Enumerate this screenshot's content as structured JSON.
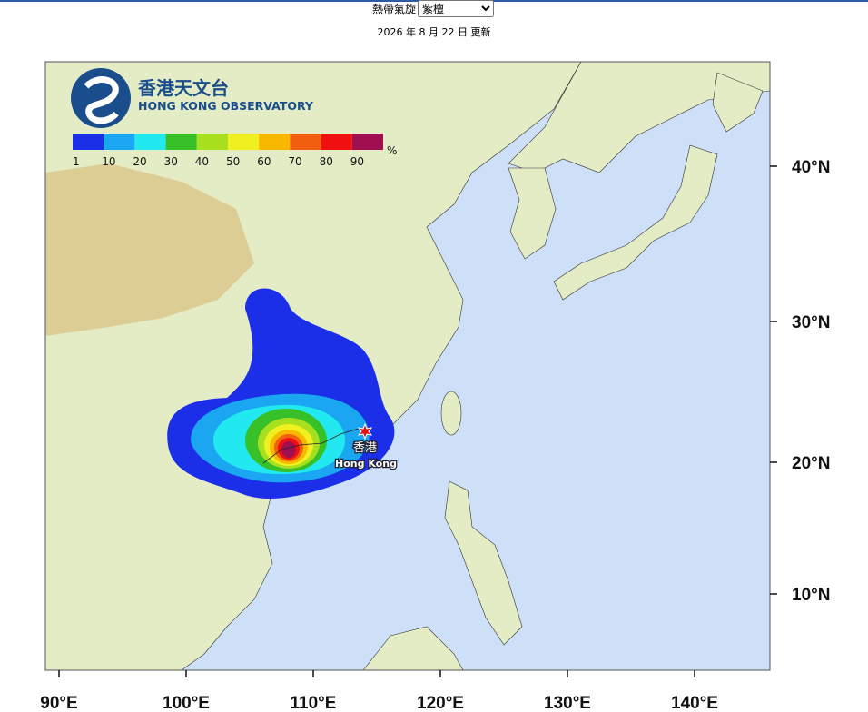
{
  "header": {
    "selector_label": "熱帶氣旋",
    "selected_option": "紫檀",
    "updated": "2026 年 8 月 22 日 更新"
  },
  "logo": {
    "name_zh": "香港天文台",
    "name_en": "HONG KONG OBSERVATORY"
  },
  "legend": {
    "unit": "%",
    "items": [
      {
        "label": "1",
        "color": "#1c2fe8"
      },
      {
        "label": "10",
        "color": "#1aa6f0"
      },
      {
        "label": "20",
        "color": "#22e8f0"
      },
      {
        "label": "30",
        "color": "#38c029"
      },
      {
        "label": "40",
        "color": "#a8e020"
      },
      {
        "label": "50",
        "color": "#f0f020"
      },
      {
        "label": "60",
        "color": "#f8b800"
      },
      {
        "label": "70",
        "color": "#f06010"
      },
      {
        "label": "80",
        "color": "#f01010"
      },
      {
        "label": "90",
        "color": "#a01050"
      }
    ]
  },
  "place": {
    "name_zh": "香港",
    "name_en": "Hong Kong"
  },
  "lat_labels": [
    "40°N",
    "30°N",
    "20°N",
    "10°N"
  ],
  "lon_labels": [
    "90°E",
    "100°E",
    "110°E",
    "120°E",
    "130°E",
    "140°E"
  ]
}
